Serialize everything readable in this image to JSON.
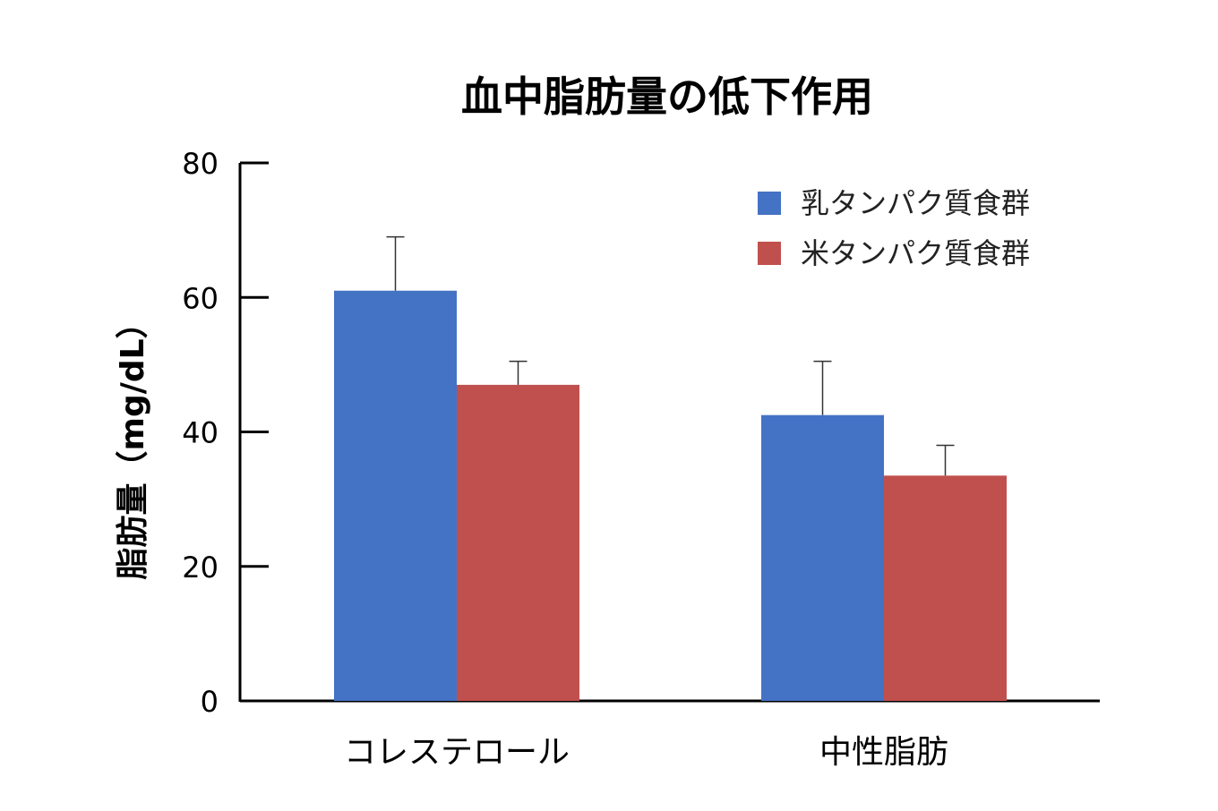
{
  "chart_data": {
    "type": "bar",
    "title": "血中脂肪量の低下作用",
    "xlabel": "",
    "ylabel": "脂肪量（mg/dL）",
    "ylim": [
      0,
      80
    ],
    "yticks": [
      0,
      20,
      40,
      60,
      80
    ],
    "categories": [
      "コレステロール",
      "中性脂肪"
    ],
    "series": [
      {
        "name": "乳タンパク質食群",
        "color": "#4472c4",
        "values": [
          61,
          42.5
        ],
        "errors": [
          8,
          8
        ]
      },
      {
        "name": "米タンパク質食群",
        "color": "#c0504d",
        "values": [
          47,
          33.5
        ],
        "errors": [
          3.5,
          4.5
        ]
      }
    ],
    "legend_position": "top-right",
    "grid": false
  }
}
